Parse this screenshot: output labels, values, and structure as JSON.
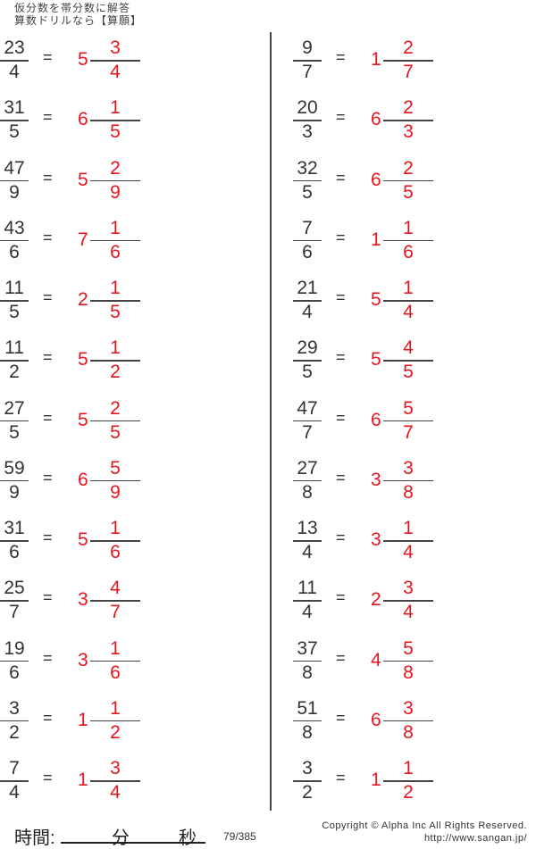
{
  "header": {
    "line1": "仮分数を帯分数に解答",
    "line2": "算数ドリルなら【算願】"
  },
  "answer_color": "#e8141e",
  "columns": [
    [
      {
        "n": "23",
        "d": "4",
        "w": "5",
        "an": "3",
        "ad": "4"
      },
      {
        "n": "31",
        "d": "5",
        "w": "6",
        "an": "1",
        "ad": "5"
      },
      {
        "n": "47",
        "d": "9",
        "w": "5",
        "an": "2",
        "ad": "9"
      },
      {
        "n": "43",
        "d": "6",
        "w": "7",
        "an": "1",
        "ad": "6"
      },
      {
        "n": "11",
        "d": "5",
        "w": "2",
        "an": "1",
        "ad": "5"
      },
      {
        "n": "11",
        "d": "2",
        "w": "5",
        "an": "1",
        "ad": "2"
      },
      {
        "n": "27",
        "d": "5",
        "w": "5",
        "an": "2",
        "ad": "5"
      },
      {
        "n": "59",
        "d": "9",
        "w": "6",
        "an": "5",
        "ad": "9"
      },
      {
        "n": "31",
        "d": "6",
        "w": "5",
        "an": "1",
        "ad": "6"
      },
      {
        "n": "25",
        "d": "7",
        "w": "3",
        "an": "4",
        "ad": "7"
      },
      {
        "n": "19",
        "d": "6",
        "w": "3",
        "an": "1",
        "ad": "6"
      },
      {
        "n": "3",
        "d": "2",
        "w": "1",
        "an": "1",
        "ad": "2"
      },
      {
        "n": "7",
        "d": "4",
        "w": "1",
        "an": "3",
        "ad": "4"
      }
    ],
    [
      {
        "n": "9",
        "d": "7",
        "w": "1",
        "an": "2",
        "ad": "7"
      },
      {
        "n": "20",
        "d": "3",
        "w": "6",
        "an": "2",
        "ad": "3"
      },
      {
        "n": "32",
        "d": "5",
        "w": "6",
        "an": "2",
        "ad": "5"
      },
      {
        "n": "7",
        "d": "6",
        "w": "1",
        "an": "1",
        "ad": "6"
      },
      {
        "n": "21",
        "d": "4",
        "w": "5",
        "an": "1",
        "ad": "4"
      },
      {
        "n": "29",
        "d": "5",
        "w": "5",
        "an": "4",
        "ad": "5"
      },
      {
        "n": "47",
        "d": "7",
        "w": "6",
        "an": "5",
        "ad": "7"
      },
      {
        "n": "27",
        "d": "8",
        "w": "3",
        "an": "3",
        "ad": "8"
      },
      {
        "n": "13",
        "d": "4",
        "w": "3",
        "an": "1",
        "ad": "4"
      },
      {
        "n": "11",
        "d": "4",
        "w": "2",
        "an": "3",
        "ad": "4"
      },
      {
        "n": "37",
        "d": "8",
        "w": "4",
        "an": "5",
        "ad": "8"
      },
      {
        "n": "51",
        "d": "8",
        "w": "6",
        "an": "3",
        "ad": "8"
      },
      {
        "n": "3",
        "d": "2",
        "w": "1",
        "an": "1",
        "ad": "2"
      }
    ]
  ],
  "equals": "=",
  "footer": {
    "time_label": "時間:",
    "minutes": "分",
    "seconds": "秒.",
    "page": "79/385",
    "copyright": "Copyright ©  Alpha Inc All Rights Reserved.",
    "url": "http://www.sangan.jp/"
  }
}
